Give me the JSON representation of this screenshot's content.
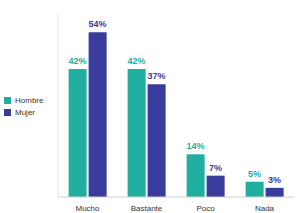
{
  "chart_data": {
    "type": "bar",
    "categories": [
      "Mucho",
      "Bastante",
      "Poco",
      "Nada"
    ],
    "series": [
      {
        "name": "Hombre",
        "color": "#20ae9f",
        "values": [
          42,
          42,
          14,
          5
        ],
        "value_labels": [
          "42%",
          "42%",
          "14%",
          "5%"
        ]
      },
      {
        "name": "Mujer",
        "color": "#393c9c",
        "values": [
          54,
          37,
          7,
          3
        ],
        "value_labels": [
          "54%",
          "37%",
          "7%",
          "3%"
        ]
      }
    ],
    "ylim": [
      0,
      60
    ],
    "data_labels": true,
    "tick_labels": "x",
    "legend": "left",
    "grid": false
  }
}
